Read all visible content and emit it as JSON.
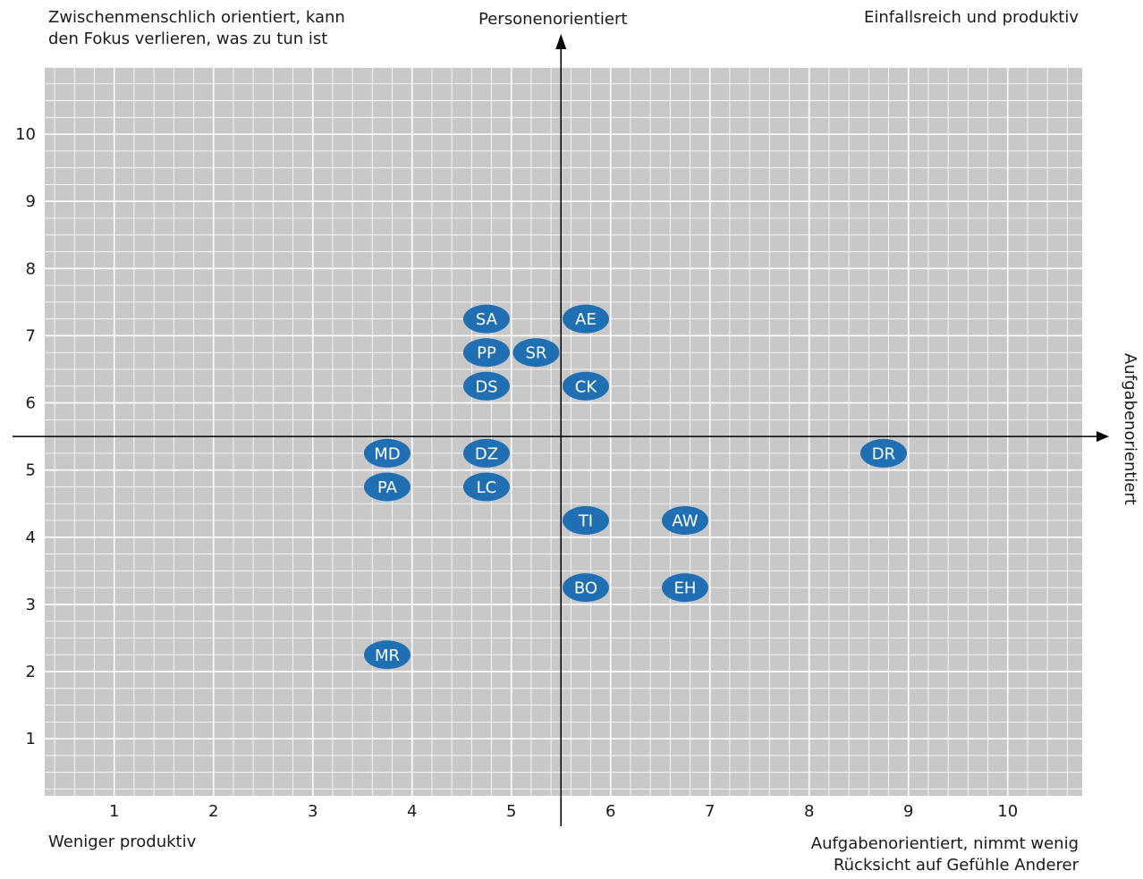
{
  "chart_data": {
    "type": "scatter",
    "corner_labels": {
      "top_left": "Zwischenmenschlich orientiert, kann\nden Fokus verlieren, was zu tun ist",
      "top_center": "Personenorientiert",
      "top_right": "Einfallsreich und produktiv",
      "bottom_left": "Weniger produktiv",
      "bottom_right": "Aufgabenorientiert, nimmt wenig\nRücksicht auf Gefühle Anderer",
      "right_axis": "Aufgabenorientiert"
    },
    "x_ticks": [
      "1",
      "2",
      "3",
      "4",
      "5",
      "6",
      "7",
      "8",
      "9",
      "10"
    ],
    "y_ticks": [
      "1",
      "2",
      "3",
      "4",
      "5",
      "6",
      "7",
      "8",
      "9",
      "10"
    ],
    "xlim": [
      0.3,
      10.75
    ],
    "ylim": [
      0.15,
      11.0
    ],
    "x_axis_crossing": 5.5,
    "y_axis_crossing": 5.5,
    "grid": true,
    "colors": {
      "background": "#c8c8c8",
      "grid": "#ffffff",
      "marker": "#1f6fb2",
      "marker_text": "#ffffff"
    },
    "points": [
      {
        "label": "SA",
        "x": 4.75,
        "y": 7.25
      },
      {
        "label": "AE",
        "x": 5.75,
        "y": 7.25
      },
      {
        "label": "PP",
        "x": 4.75,
        "y": 6.75
      },
      {
        "label": "SR",
        "x": 5.25,
        "y": 6.75
      },
      {
        "label": "DS",
        "x": 4.75,
        "y": 6.25
      },
      {
        "label": "CK",
        "x": 5.75,
        "y": 6.25
      },
      {
        "label": "MD",
        "x": 3.75,
        "y": 5.25
      },
      {
        "label": "DZ",
        "x": 4.75,
        "y": 5.25
      },
      {
        "label": "DR",
        "x": 8.75,
        "y": 5.25
      },
      {
        "label": "PA",
        "x": 3.75,
        "y": 4.75
      },
      {
        "label": "LC",
        "x": 4.75,
        "y": 4.75
      },
      {
        "label": "TI",
        "x": 5.75,
        "y": 4.25
      },
      {
        "label": "AW",
        "x": 6.75,
        "y": 4.25
      },
      {
        "label": "BO",
        "x": 5.75,
        "y": 3.25
      },
      {
        "label": "EH",
        "x": 6.75,
        "y": 3.25
      },
      {
        "label": "MR",
        "x": 3.75,
        "y": 2.25
      }
    ]
  }
}
